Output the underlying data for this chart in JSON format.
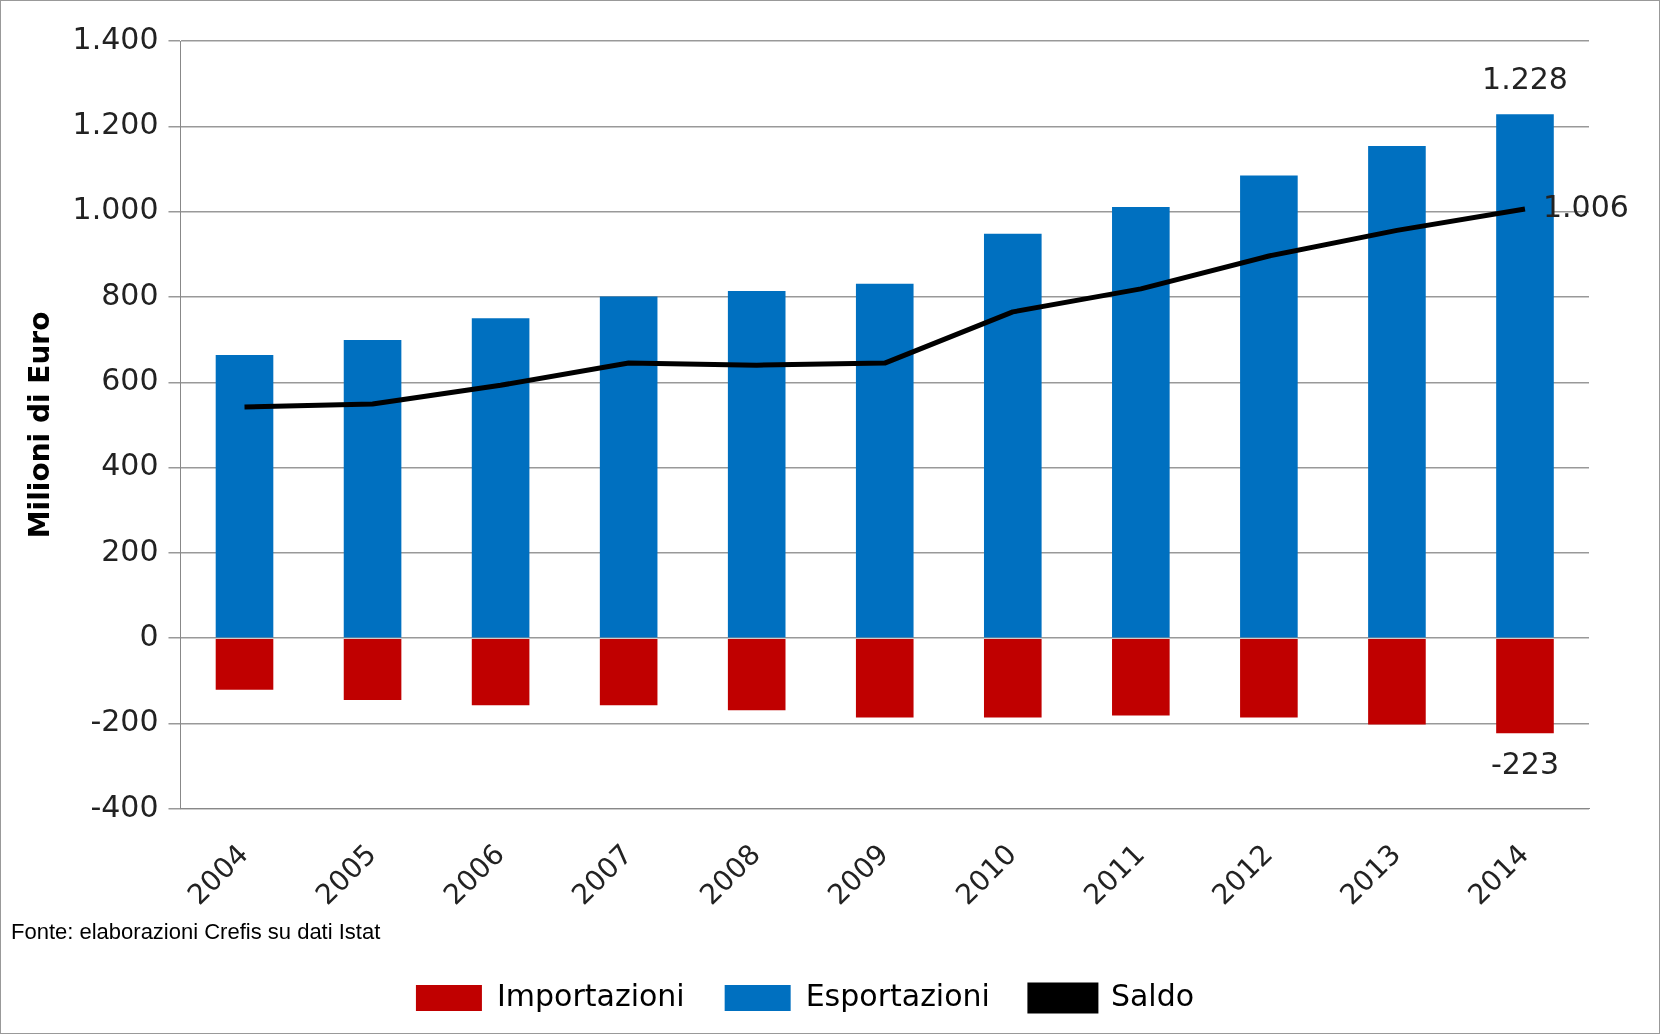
{
  "chart_data": {
    "type": "bar",
    "stacked": true,
    "ylabel": "Milioni di Euro",
    "categories": [
      "2004",
      "2005",
      "2006",
      "2007",
      "2008",
      "2009",
      "2010",
      "2011",
      "2012",
      "2013",
      "2014"
    ],
    "series": [
      {
        "name": "Importazioni",
        "color": "#c00000",
        "values": [
          -121,
          -145,
          -157,
          -157,
          -169,
          -186,
          -186,
          -181,
          -186,
          -202,
          -223
        ],
        "value_labels": [
          null,
          null,
          null,
          null,
          null,
          null,
          null,
          null,
          null,
          null,
          "-223"
        ]
      },
      {
        "name": "Esportazioni",
        "color": "#0070c0",
        "values": [
          664,
          699,
          750,
          801,
          814,
          831,
          948,
          1011,
          1085,
          1154,
          1228
        ],
        "value_labels": [
          null,
          null,
          null,
          null,
          null,
          null,
          null,
          null,
          null,
          null,
          "1.228"
        ]
      },
      {
        "name": "Saldo",
        "type": "line",
        "color": "#000000",
        "marker": "none",
        "line_style": "solid",
        "values": [
          542,
          549,
          593,
          645,
          640,
          645,
          765,
          819,
          896,
          956,
          1006
        ],
        "value_labels": [
          null,
          null,
          null,
          null,
          null,
          null,
          null,
          null,
          null,
          null,
          "1.006"
        ]
      }
    ],
    "ylim": [
      -400,
      1400
    ],
    "yticks": [
      {
        "value": -400,
        "label": "-400"
      },
      {
        "value": -200,
        "label": "-200"
      },
      0,
      200,
      400,
      600,
      800,
      {
        "value": 1000,
        "label": "1.000"
      },
      {
        "value": 1200,
        "label": "1.200"
      },
      {
        "value": 1400,
        "label": "1.400"
      }
    ],
    "grid": "y",
    "legend": "bottom",
    "annotations": [
      "Fonte: elaborazioni Crefis su dati Istat"
    ]
  }
}
